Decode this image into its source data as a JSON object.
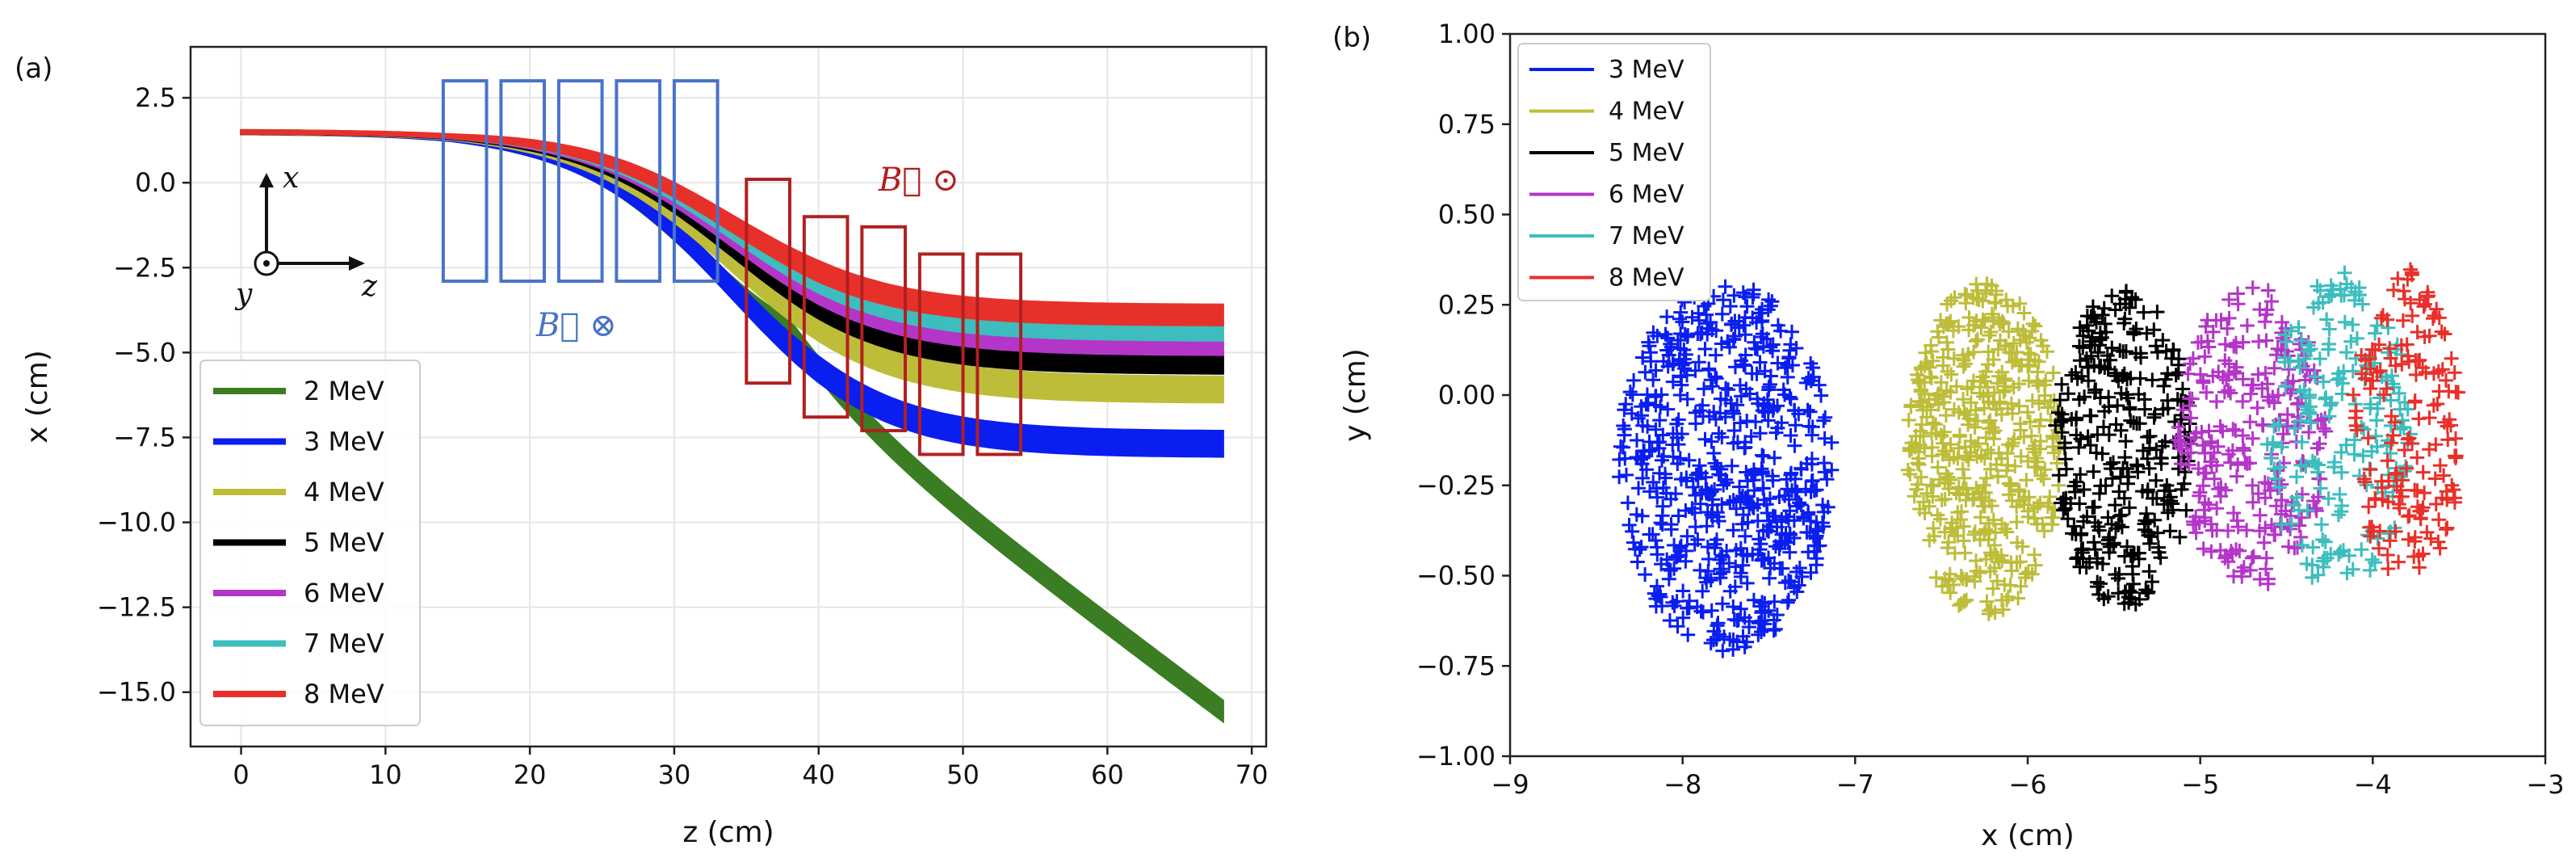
{
  "panel_labels": {
    "a": "(a)",
    "b": "(b)"
  },
  "colors": {
    "mev2": "#3a7d22",
    "mev3": "#0a1ef0",
    "mev4": "#bdbd3a",
    "mev5": "#000000",
    "mev6": "#b436c8",
    "mev7": "#3dbdbd",
    "mev8": "#e8302a",
    "magnet_blue": "#4a73c8",
    "magnet_red": "#b02020"
  },
  "annotations": {
    "b_out": "B⃗ ⊙",
    "b_in": "B⃗ ⊗",
    "axis_x": "x",
    "axis_y": "y",
    "axis_z": "z"
  },
  "chart_data": [
    {
      "type": "line",
      "title": "",
      "xlabel": "z (cm)",
      "ylabel": "x (cm)",
      "xlim": [
        -3.5,
        71
      ],
      "ylim": [
        -16.6,
        4.0
      ],
      "xticks": [
        0,
        10,
        20,
        30,
        40,
        50,
        60,
        70
      ],
      "xtick_labels": [
        "0",
        "10",
        "20",
        "30",
        "40",
        "50",
        "60",
        "70"
      ],
      "yticks": [
        2.5,
        0.0,
        -2.5,
        -5.0,
        -7.5,
        -10.0,
        -12.5,
        -15.0
      ],
      "ytick_labels": [
        "2.5",
        "0.0",
        "−2.5",
        "−5.0",
        "−7.5",
        "−10.0",
        "−12.5",
        "−15.0"
      ],
      "legend_position": "lower-left",
      "series": [
        {
          "name": "2 MeV",
          "color_key": "mev2",
          "final": -15.3,
          "slope_end": -0.325,
          "width": 0.6
        },
        {
          "name": "3 MeV",
          "color_key": "mev3",
          "final": -7.7,
          "width": 0.75
        },
        {
          "name": "4 MeV",
          "color_key": "mev4",
          "final": -6.1,
          "width": 0.75
        },
        {
          "name": "5 MeV",
          "color_key": "mev5",
          "final": -5.3,
          "width": 0.65
        },
        {
          "name": "6 MeV",
          "color_key": "mev6",
          "final": -4.8,
          "width": 0.55
        },
        {
          "name": "7 MeV",
          "color_key": "mev7",
          "final": -4.4,
          "width": 0.5
        },
        {
          "name": "8 MeV",
          "color_key": "mev8",
          "final": -3.9,
          "width": 0.6
        }
      ],
      "magnets_in": [
        {
          "z0": 14,
          "z1": 17,
          "x0": -2.9,
          "x1": 3.0
        },
        {
          "z0": 18,
          "z1": 21,
          "x0": -2.9,
          "x1": 3.0
        },
        {
          "z0": 22,
          "z1": 25,
          "x0": -2.9,
          "x1": 3.0
        },
        {
          "z0": 26,
          "z1": 29,
          "x0": -2.9,
          "x1": 3.0
        },
        {
          "z0": 30,
          "z1": 33,
          "x0": -2.9,
          "x1": 3.0
        }
      ],
      "magnets_out": [
        {
          "z0": 35,
          "z1": 38,
          "x0": -5.9,
          "x1": 0.1
        },
        {
          "z0": 39,
          "z1": 42,
          "x0": -6.9,
          "x1": -1.0
        },
        {
          "z0": 43,
          "z1": 46,
          "x0": -7.3,
          "x1": -1.3
        },
        {
          "z0": 47,
          "z1": 50,
          "x0": -8.0,
          "x1": -2.1
        },
        {
          "z0": 51,
          "z1": 54,
          "x0": -8.0,
          "x1": -2.1
        }
      ]
    },
    {
      "type": "scatter",
      "title": "",
      "xlabel": "x (cm)",
      "ylabel": "y (cm)",
      "xlim": [
        -9,
        -3
      ],
      "ylim": [
        -1.0,
        1.0
      ],
      "xticks": [
        -9,
        -8,
        -7,
        -6,
        -5,
        -4,
        -3
      ],
      "xtick_labels": [
        "−9",
        "−8",
        "−7",
        "−6",
        "−5",
        "−4",
        "−3"
      ],
      "yticks": [
        1.0,
        0.75,
        0.5,
        0.25,
        0.0,
        -0.25,
        -0.5,
        -0.75,
        -1.0
      ],
      "ytick_labels": [
        "1.00",
        "0.75",
        "0.50",
        "0.25",
        "0.00",
        "−0.25",
        "−0.50",
        "−0.75",
        "−1.00"
      ],
      "legend_position": "top-left",
      "series": [
        {
          "name": "3 MeV",
          "color_key": "mev3",
          "cx": -7.75,
          "cy": -0.2,
          "rx": 0.62,
          "ry": 0.51,
          "n": 640
        },
        {
          "name": "4 MeV",
          "color_key": "mev4",
          "cx": -6.25,
          "cy": -0.15,
          "rx": 0.45,
          "ry": 0.46,
          "n": 480
        },
        {
          "name": "5 MeV",
          "color_key": "mev5",
          "cx": -5.45,
          "cy": -0.15,
          "rx": 0.4,
          "ry": 0.44,
          "n": 330
        },
        {
          "name": "6 MeV",
          "color_key": "mev6",
          "cx": -4.7,
          "cy": -0.12,
          "rx": 0.43,
          "ry": 0.42,
          "n": 270
        },
        {
          "name": "7 MeV",
          "color_key": "mev7",
          "cx": -4.2,
          "cy": -0.1,
          "rx": 0.42,
          "ry": 0.44,
          "n": 200
        },
        {
          "name": "8 MeV",
          "color_key": "mev8",
          "cx": -3.8,
          "cy": -0.08,
          "rx": 0.32,
          "ry": 0.43,
          "n": 170
        }
      ]
    }
  ]
}
